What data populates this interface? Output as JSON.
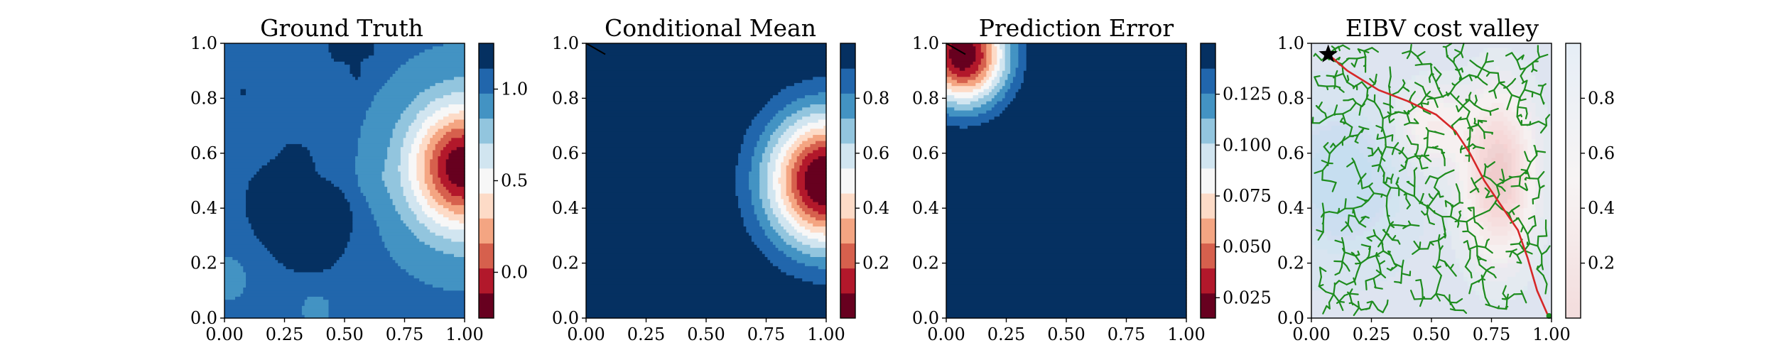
{
  "figure": {
    "layout": "1x4 panels",
    "colors": {
      "rdbu": [
        "#67001f",
        "#b2182b",
        "#d6604d",
        "#f4a582",
        "#fddbc7",
        "#f7f7f7",
        "#d1e5f0",
        "#92c5de",
        "#4393c3",
        "#2166ac",
        "#053061"
      ],
      "tree": "#1e8c1e",
      "path": "#d62728"
    }
  },
  "chart_data": [
    {
      "type": "heatmap",
      "title": "Ground Truth",
      "xlabel": "",
      "ylabel": "",
      "xlim": [
        0,
        1
      ],
      "ylim": [
        0,
        1
      ],
      "xticks": [
        "0.00",
        "0.25",
        "0.50",
        "0.75",
        "1.00"
      ],
      "yticks": [
        "0.0",
        "0.2",
        "0.4",
        "0.6",
        "0.8",
        "1.0"
      ],
      "colorbar": {
        "vmin": -0.25,
        "vmax": 1.25,
        "levels": 11,
        "ticks": [
          "0.0",
          "0.5",
          "1.0"
        ],
        "tick_values": [
          0,
          0.5,
          1.0
        ]
      },
      "hotspot": {
        "x": 1.0,
        "y": 0.55,
        "peak": -0.25
      },
      "background": 1.0
    },
    {
      "type": "heatmap",
      "title": "Conditional Mean",
      "xlabel": "",
      "ylabel": "",
      "xlim": [
        0,
        1
      ],
      "ylim": [
        0,
        1
      ],
      "xticks": [
        "0.00",
        "0.25",
        "0.50",
        "0.75",
        "1.00"
      ],
      "yticks": [
        "0.0",
        "0.2",
        "0.4",
        "0.6",
        "0.8",
        "1.0"
      ],
      "colorbar": {
        "vmin": 0.0,
        "vmax": 1.0,
        "levels": 11,
        "ticks": [
          "0.2",
          "0.4",
          "0.6",
          "0.8"
        ],
        "tick_values": [
          0.2,
          0.4,
          0.6,
          0.8
        ]
      },
      "hotspot": {
        "x": 1.0,
        "y": 0.5,
        "peak": 0.0
      },
      "trajectory": [
        [
          0.0,
          1.0
        ],
        [
          0.08,
          0.96
        ]
      ]
    },
    {
      "type": "heatmap",
      "title": "Prediction Error",
      "xlabel": "",
      "ylabel": "",
      "xlim": [
        0,
        1
      ],
      "ylim": [
        0,
        1
      ],
      "xticks": [
        "0.00",
        "0.25",
        "0.50",
        "0.75",
        "1.00"
      ],
      "yticks": [
        "0.0",
        "0.2",
        "0.4",
        "0.6",
        "0.8",
        "1.0"
      ],
      "colorbar": {
        "vmin": 0.015,
        "vmax": 0.15,
        "levels": 11,
        "ticks": [
          "0.025",
          "0.050",
          "0.075",
          "0.100",
          "0.125"
        ],
        "tick_values": [
          0.025,
          0.05,
          0.075,
          0.1,
          0.125
        ]
      },
      "hotspot": {
        "x": 0.07,
        "y": 0.96,
        "peak": 0.015
      },
      "trajectory": [
        [
          0.0,
          1.0
        ],
        [
          0.08,
          0.96
        ]
      ]
    },
    {
      "type": "heatmap",
      "title": "EIBV cost valley",
      "xlabel": "",
      "ylabel": "",
      "xlim": [
        0,
        1
      ],
      "ylim": [
        0,
        1
      ],
      "xticks": [
        "0.00",
        "0.25",
        "0.50",
        "0.75",
        "1.00"
      ],
      "yticks": [
        "0.0",
        "0.2",
        "0.4",
        "0.6",
        "0.8",
        "1.0"
      ],
      "colorbar": {
        "vmin": 0.0,
        "vmax": 1.0,
        "ticks": [
          "0.2",
          "0.4",
          "0.6",
          "0.8"
        ],
        "tick_values": [
          0.2,
          0.4,
          0.6,
          0.8
        ]
      },
      "start_marker": {
        "x": 0.07,
        "y": 0.96,
        "symbol": "star"
      },
      "end_marker": {
        "x": 0.99,
        "y": 0.0
      },
      "planned_path": [
        [
          0.07,
          0.96
        ],
        [
          0.15,
          0.9
        ],
        [
          0.28,
          0.83
        ],
        [
          0.4,
          0.79
        ],
        [
          0.52,
          0.74
        ],
        [
          0.6,
          0.68
        ],
        [
          0.66,
          0.6
        ],
        [
          0.72,
          0.5
        ],
        [
          0.79,
          0.41
        ],
        [
          0.86,
          0.32
        ],
        [
          0.9,
          0.22
        ],
        [
          0.94,
          0.1
        ],
        [
          0.99,
          0.0
        ]
      ],
      "tree": "rrt"
    }
  ]
}
